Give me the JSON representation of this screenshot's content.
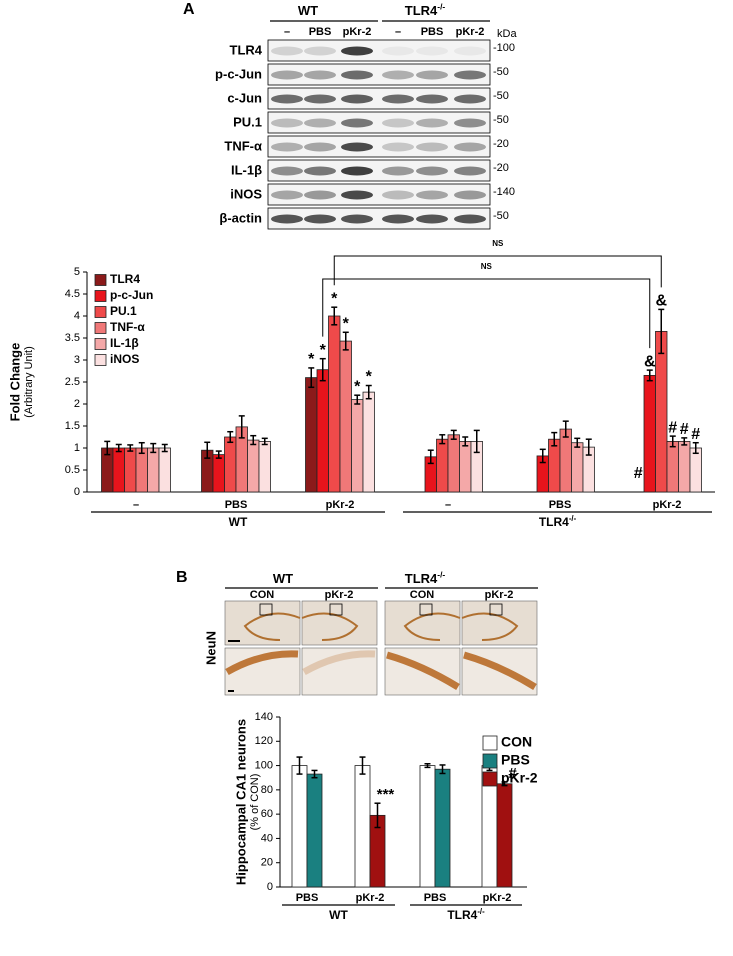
{
  "panels": {
    "a": "A",
    "b": "B"
  },
  "blot": {
    "groups": [
      {
        "text": "WT"
      },
      {
        "text": "TLR4",
        "sup": "-/-"
      }
    ],
    "lanes": [
      "–",
      "PBS",
      "pKr-2",
      "–",
      "PBS",
      "pKr-2"
    ],
    "unit": "kDa",
    "rows": [
      {
        "label": "TLR4",
        "kda": "-100"
      },
      {
        "label": "p-c-Jun",
        "kda": "-50"
      },
      {
        "label": "c-Jun",
        "kda": "-50"
      },
      {
        "label": "PU.1",
        "kda": "-50"
      },
      {
        "label": "TNF-α",
        "kda": "-20"
      },
      {
        "label": "IL-1β",
        "kda": "-20"
      },
      {
        "label": "iNOS",
        "kda": "-140"
      },
      {
        "label": "β-actin",
        "kda": "-50"
      }
    ]
  },
  "histology": {
    "groups": [
      {
        "text": "WT"
      },
      {
        "text": "TLR4",
        "sup": "-/-"
      }
    ],
    "columns": [
      "CON",
      "pKr-2",
      "CON",
      "pKr-2"
    ],
    "stain": "NeuN"
  },
  "chart_data": [
    {
      "type": "bar",
      "ylabel": "Fold Change",
      "ylabel_sub": "(Arbitrary Unit)",
      "ylim": [
        0,
        5
      ],
      "yticks": [
        0,
        0.5,
        1,
        1.5,
        2,
        2.5,
        3,
        3.5,
        4,
        4.5,
        5
      ],
      "categories": [
        "–",
        "PBS",
        "pKr-2",
        "–",
        "PBS",
        "pKr-2"
      ],
      "groups": [
        {
          "text": "WT"
        },
        {
          "text": "TLR4",
          "sup": "-/-"
        }
      ],
      "comparisons": [
        "NS",
        "NS"
      ],
      "series": [
        {
          "name": "TLR4",
          "color": "#8b1a1a",
          "values": [
            1.0,
            0.95,
            2.6,
            null,
            null,
            null
          ],
          "errors": [
            0.15,
            0.18,
            0.22,
            null,
            null,
            null
          ],
          "annotations": [
            null,
            null,
            "*",
            null,
            null,
            "#"
          ]
        },
        {
          "name": "p-c-Jun",
          "color": "#e8141c",
          "values": [
            1.0,
            0.85,
            2.78,
            0.8,
            0.82,
            2.65
          ],
          "errors": [
            0.08,
            0.08,
            0.25,
            0.15,
            0.15,
            0.12
          ],
          "annotations": [
            null,
            null,
            "*",
            null,
            null,
            "&"
          ]
        },
        {
          "name": "PU.1",
          "color": "#ef4a4a",
          "values": [
            1.0,
            1.25,
            4.0,
            1.2,
            1.2,
            3.65
          ],
          "errors": [
            0.07,
            0.12,
            0.2,
            0.1,
            0.15,
            0.5
          ],
          "annotations": [
            null,
            null,
            "*",
            null,
            null,
            "&"
          ]
        },
        {
          "name": "TNF-α",
          "color": "#f07878",
          "values": [
            1.0,
            1.48,
            3.43,
            1.3,
            1.43,
            1.15
          ],
          "errors": [
            0.12,
            0.25,
            0.2,
            0.1,
            0.18,
            0.12
          ],
          "annotations": [
            null,
            null,
            "*",
            null,
            null,
            "#"
          ]
        },
        {
          "name": "IL-1β",
          "color": "#f4a8a8",
          "values": [
            1.0,
            1.18,
            2.1,
            1.15,
            1.12,
            1.15
          ],
          "errors": [
            0.1,
            0.1,
            0.1,
            0.1,
            0.1,
            0.08
          ],
          "annotations": [
            null,
            null,
            "*",
            null,
            null,
            "#"
          ]
        },
        {
          "name": "iNOS",
          "color": "#fbe0e0",
          "values": [
            1.0,
            1.15,
            2.27,
            1.15,
            1.02,
            1.0
          ],
          "errors": [
            0.08,
            0.07,
            0.15,
            0.25,
            0.18,
            0.12
          ],
          "annotations": [
            null,
            null,
            "*",
            null,
            null,
            "#"
          ]
        }
      ]
    },
    {
      "type": "bar",
      "ylabel": "Hippocampal CA1 neurons",
      "ylabel_sub": "(% of CON)",
      "ylim": [
        0,
        140
      ],
      "yticks": [
        0,
        20,
        40,
        60,
        80,
        100,
        120,
        140
      ],
      "categories": [
        "PBS",
        "pKr-2",
        "PBS",
        "pKr-2"
      ],
      "groups": [
        {
          "text": "WT"
        },
        {
          "text": "TLR4",
          "sup": "-/-"
        }
      ],
      "series": [
        {
          "name": "CON",
          "color": "#ffffff",
          "values": [
            100,
            100,
            100,
            100
          ],
          "errors": [
            7,
            7,
            1.5,
            4
          ],
          "annotations": [
            null,
            null,
            null,
            null
          ]
        },
        {
          "name": "PBS",
          "color": "#1a8080",
          "values": [
            93,
            null,
            97,
            null
          ],
          "errors": [
            3,
            null,
            3.5,
            null
          ],
          "annotations": [
            null,
            null,
            null,
            null
          ]
        },
        {
          "name": "pKr-2",
          "color": "#a01010",
          "values": [
            null,
            59,
            null,
            85
          ],
          "errors": [
            null,
            10,
            null,
            1.5
          ],
          "annotations": [
            null,
            "***",
            null,
            "#"
          ]
        }
      ]
    }
  ]
}
